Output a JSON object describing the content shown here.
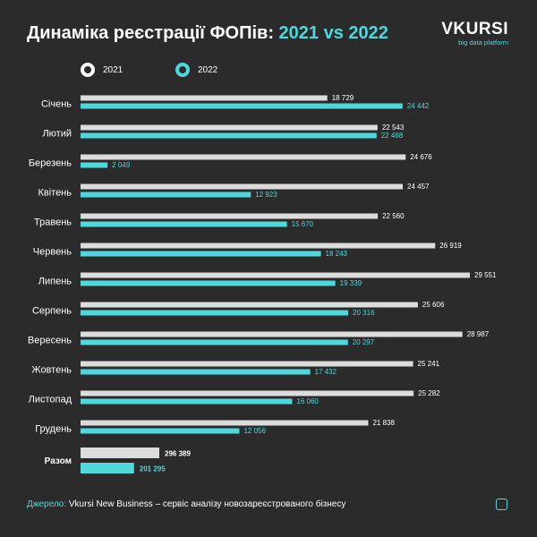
{
  "title_main": "Динаміка реєстрації ФОПів:",
  "title_accent": "2021 vs 2022",
  "brand": {
    "logo": "VKURSI",
    "tagline": "big data platform"
  },
  "source_label": "Джерело:",
  "source_text": " Vkursi New Business – сервіс аналізу новозареєстрованого бізнесу",
  "colors": {
    "background": "#2b2b2b",
    "series_2021": "#dcdcdc",
    "series_2022": "#4fd8dc"
  },
  "chart_data": {
    "type": "bar",
    "orientation": "horizontal",
    "categories": [
      "Січень",
      "Лютий",
      "Березень",
      "Квітень",
      "Травень",
      "Червень",
      "Липень",
      "Серпень",
      "Вересень",
      "Жовтень",
      "Листопад",
      "Грудень"
    ],
    "series": [
      {
        "name": "2021",
        "values": [
          18729,
          22543,
          24676,
          24457,
          22560,
          26919,
          29551,
          25606,
          28987,
          25241,
          25282,
          21838
        ],
        "labels": [
          "18 729",
          "22 543",
          "24 676",
          "24 457",
          "22 560",
          "26 919",
          "29 551",
          "25 606",
          "28 987",
          "25 241",
          "25 282",
          "21 838"
        ]
      },
      {
        "name": "2022",
        "values": [
          24442,
          22468,
          2049,
          12923,
          15670,
          18243,
          19339,
          20316,
          20297,
          17432,
          16060,
          12056
        ],
        "labels": [
          "24 442",
          "22 468",
          "2 049",
          "12 923",
          "15 670",
          "18 243",
          "19 339",
          "20 316",
          "20 297",
          "17 432",
          "16 060",
          "12 056"
        ]
      }
    ],
    "total": {
      "label": "Разом",
      "values": [
        296389,
        201295
      ],
      "labels": [
        "296 389",
        "201 295"
      ]
    },
    "legend": "top-left",
    "grid": false
  }
}
